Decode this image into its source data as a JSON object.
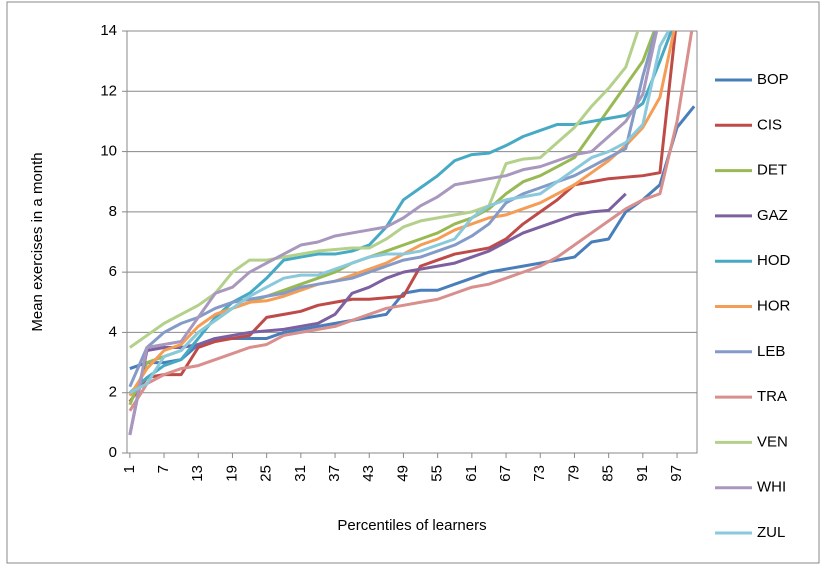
{
  "chart_data": {
    "type": "line",
    "y_label": "Mean exercises in a month",
    "x_label": "Percentiles of learners",
    "x": [
      1,
      4,
      7,
      10,
      13,
      16,
      19,
      22,
      25,
      28,
      31,
      34,
      37,
      40,
      43,
      46,
      49,
      52,
      55,
      58,
      61,
      64,
      67,
      70,
      73,
      76,
      79,
      82,
      85,
      88,
      91,
      94,
      97,
      100
    ],
    "xlim": [
      0.5,
      100.5
    ],
    "xticks": [
      1,
      7,
      13,
      19,
      25,
      31,
      37,
      43,
      49,
      55,
      61,
      67,
      73,
      79,
      85,
      91,
      97
    ],
    "ylim": [
      0,
      14
    ],
    "yticks": [
      0,
      2,
      4,
      6,
      8,
      10,
      12,
      14
    ],
    "grid": true,
    "legend": "right",
    "series": [
      {
        "name": "BOP",
        "color": "#4a7ebb",
        "values": [
          2.8,
          3.0,
          3.0,
          3.1,
          3.6,
          3.8,
          3.8,
          3.8,
          3.8,
          4.0,
          4.1,
          4.2,
          4.3,
          4.4,
          4.5,
          4.6,
          5.3,
          5.4,
          5.4,
          5.6,
          5.8,
          6.0,
          6.1,
          6.2,
          6.3,
          6.4,
          6.5,
          7.0,
          7.1,
          8.0,
          8.4,
          8.9,
          10.8,
          11.5
        ]
      },
      {
        "name": "CIS",
        "color": "#be4b48",
        "values": [
          1.7,
          2.5,
          2.6,
          2.6,
          3.5,
          3.7,
          3.8,
          3.9,
          4.5,
          4.6,
          4.7,
          4.9,
          5.0,
          5.1,
          5.1,
          5.15,
          5.2,
          6.2,
          6.4,
          6.6,
          6.7,
          6.8,
          7.1,
          7.6,
          8.0,
          8.4,
          8.9,
          9.0,
          9.1,
          9.15,
          9.2,
          9.3,
          14.5,
          null
        ]
      },
      {
        "name": "DET",
        "color": "#98b954",
        "values": [
          1.6,
          3.0,
          3.2,
          3.4,
          4.0,
          4.4,
          4.8,
          5.0,
          5.2,
          5.4,
          5.6,
          5.8,
          6.0,
          6.3,
          6.5,
          6.7,
          6.9,
          7.1,
          7.3,
          7.6,
          7.8,
          8.1,
          8.6,
          9.0,
          9.2,
          9.5,
          9.8,
          10.6,
          11.4,
          12.2,
          13.0,
          14.5,
          null,
          null
        ]
      },
      {
        "name": "GAZ",
        "color": "#7d60a0",
        "values": [
          0.6,
          3.4,
          3.5,
          3.5,
          3.6,
          3.8,
          3.9,
          4.0,
          4.05,
          4.1,
          4.2,
          4.3,
          4.6,
          5.3,
          5.5,
          5.8,
          6.0,
          6.1,
          6.2,
          6.3,
          6.5,
          6.7,
          7.0,
          7.3,
          7.5,
          7.7,
          7.9,
          8.0,
          8.05,
          8.6,
          null,
          null,
          null,
          null
        ]
      },
      {
        "name": "HOD",
        "color": "#46aac5",
        "values": [
          2.0,
          2.5,
          2.9,
          3.1,
          3.8,
          4.5,
          5.0,
          5.3,
          5.8,
          6.4,
          6.5,
          6.6,
          6.6,
          6.7,
          6.9,
          7.5,
          8.4,
          8.8,
          9.2,
          9.7,
          9.9,
          9.95,
          10.2,
          10.5,
          10.7,
          10.9,
          10.9,
          11.0,
          11.1,
          11.2,
          11.6,
          13.0,
          14.5,
          null
        ]
      },
      {
        "name": "HOR",
        "color": "#f59d56",
        "values": [
          1.9,
          2.8,
          3.4,
          3.6,
          4.2,
          4.6,
          4.8,
          5.0,
          5.05,
          5.2,
          5.4,
          5.6,
          5.7,
          5.9,
          6.1,
          6.3,
          6.6,
          6.9,
          7.1,
          7.4,
          7.6,
          7.8,
          7.9,
          8.1,
          8.3,
          8.6,
          8.9,
          9.3,
          9.7,
          10.2,
          10.8,
          11.8,
          14.5,
          null
        ]
      },
      {
        "name": "LEB",
        "color": "#849ac7",
        "values": [
          2.2,
          3.5,
          4.0,
          4.3,
          4.5,
          4.8,
          5.0,
          5.1,
          5.2,
          5.3,
          5.5,
          5.6,
          5.7,
          5.8,
          6.0,
          6.2,
          6.4,
          6.5,
          6.7,
          6.9,
          7.2,
          7.6,
          8.3,
          8.6,
          8.8,
          9.0,
          9.2,
          9.5,
          9.8,
          10.1,
          12.5,
          14.5,
          null,
          null
        ]
      },
      {
        "name": "TRA",
        "color": "#d88f8d",
        "values": [
          1.4,
          2.3,
          2.6,
          2.8,
          2.9,
          3.1,
          3.3,
          3.5,
          3.6,
          3.9,
          4.0,
          4.1,
          4.2,
          4.4,
          4.6,
          4.8,
          4.9,
          5.0,
          5.1,
          5.3,
          5.5,
          5.6,
          5.8,
          6.0,
          6.2,
          6.5,
          6.9,
          7.3,
          7.7,
          8.1,
          8.4,
          8.6,
          11,
          14.5
        ]
      },
      {
        "name": "VEN",
        "color": "#b4d18b",
        "values": [
          3.5,
          3.9,
          4.3,
          4.6,
          4.9,
          5.3,
          6.0,
          6.4,
          6.4,
          6.5,
          6.6,
          6.7,
          6.75,
          6.8,
          6.8,
          7.1,
          7.5,
          7.7,
          7.8,
          7.9,
          8.0,
          8.2,
          9.6,
          9.75,
          9.8,
          10.3,
          10.8,
          11.5,
          12.1,
          12.8,
          14.5,
          null,
          null,
          null
        ]
      },
      {
        "name": "WHI",
        "color": "#a898be",
        "values": [
          0.6,
          3.5,
          3.6,
          3.7,
          4.5,
          5.3,
          5.5,
          6.0,
          6.3,
          6.6,
          6.9,
          7.0,
          7.2,
          7.3,
          7.4,
          7.5,
          7.8,
          8.2,
          8.5,
          8.9,
          9.0,
          9.1,
          9.2,
          9.4,
          9.5,
          9.7,
          9.9,
          10.0,
          10.5,
          11.0,
          11.9,
          14.5,
          null,
          null
        ]
      },
      {
        "name": "ZUL",
        "color": "#8ac9dc",
        "values": [
          2.0,
          2.3,
          3.2,
          3.4,
          4.0,
          4.4,
          4.8,
          5.2,
          5.5,
          5.8,
          5.9,
          5.9,
          6.1,
          6.3,
          6.5,
          6.6,
          6.6,
          6.7,
          6.9,
          7.1,
          7.8,
          8.2,
          8.4,
          8.5,
          8.6,
          9.0,
          9.4,
          9.8,
          10.0,
          10.3,
          10.9,
          13.5,
          14.5,
          null
        ]
      }
    ]
  }
}
